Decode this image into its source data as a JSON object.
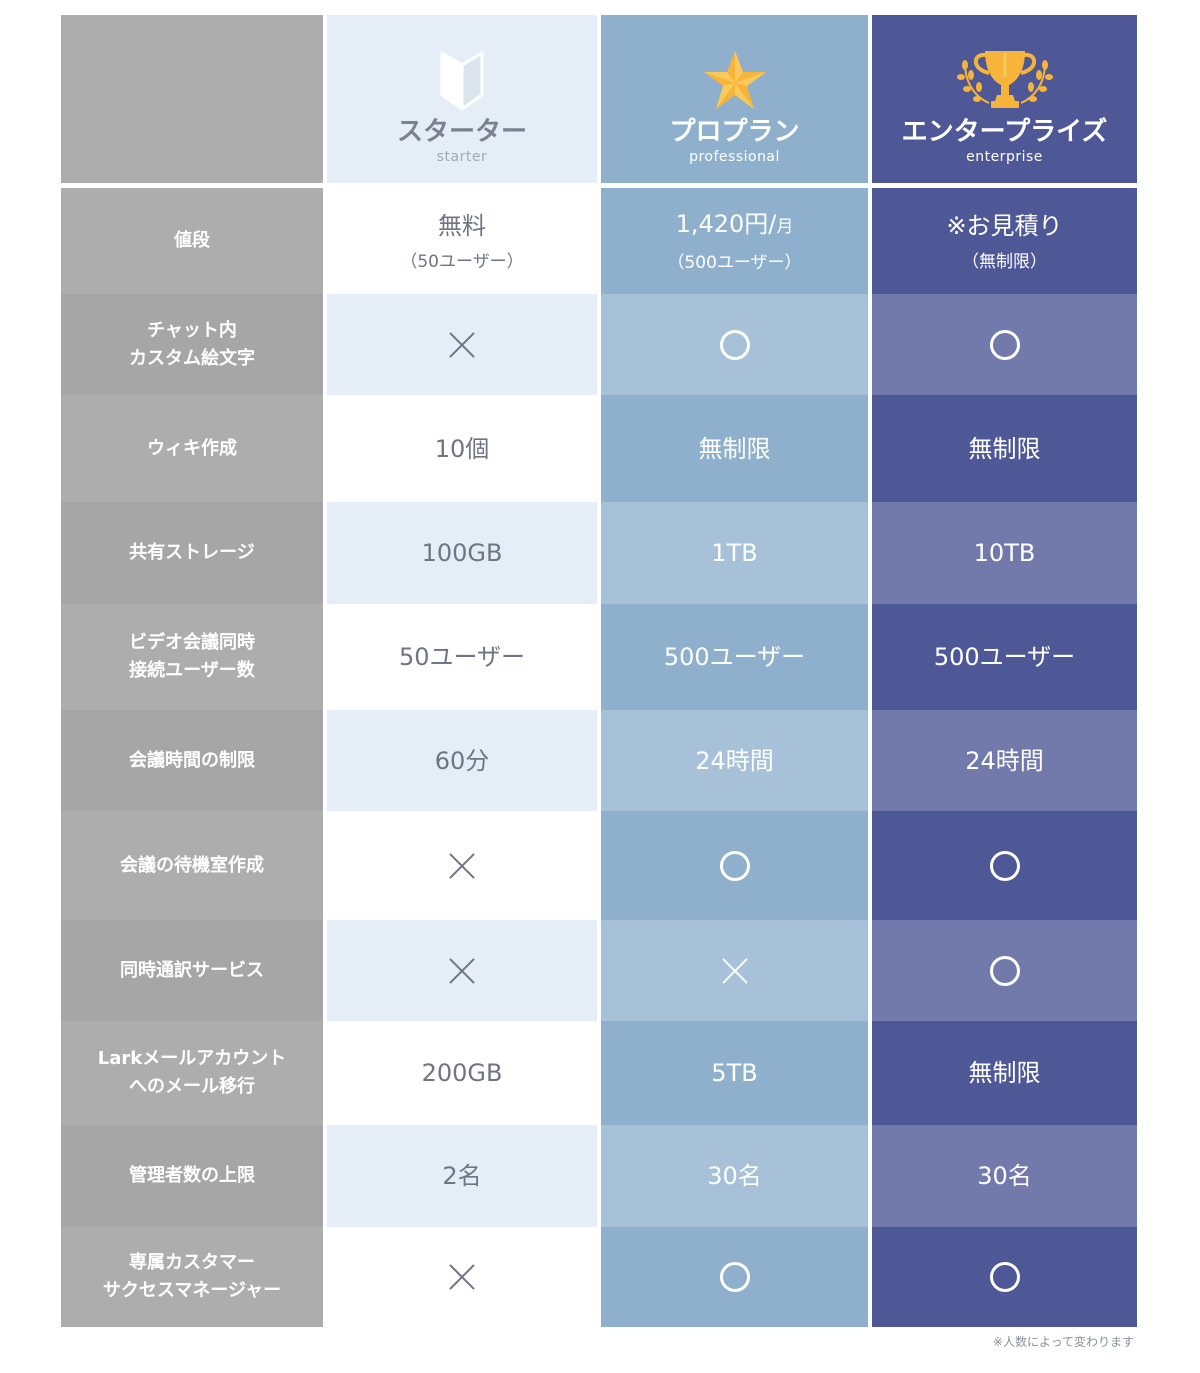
{
  "colors": {
    "label_col": [
      "#adadad",
      "#a6a6a6"
    ],
    "starter": [
      "#ffffff",
      "#e5eef6"
    ],
    "professional": [
      "#8fb0cd",
      "#a6c1d8"
    ],
    "enterprise": [
      "#4f5896",
      "#727aab"
    ],
    "starter_text": "#6f7585",
    "accent_gold": "#f6b53a"
  },
  "plans": [
    {
      "key": "starter",
      "name_jp": "スターター",
      "name_en": "starter",
      "icon": "beginner-mark-icon"
    },
    {
      "key": "professional",
      "name_jp": "プロプラン",
      "name_en": "professional",
      "icon": "star-icon"
    },
    {
      "key": "enterprise",
      "name_jp": "エンタープライズ",
      "name_en": "enterprise",
      "icon": "trophy-icon"
    }
  ],
  "rows": [
    {
      "label": [
        "値段"
      ],
      "cells": [
        {
          "type": "text",
          "main": "無料",
          "sub": "（50ユーザー）"
        },
        {
          "type": "text",
          "main": "1,420円/",
          "unit": "月",
          "sub": "（500ユーザー）"
        },
        {
          "type": "text",
          "main": "※お見積り",
          "sub": "（無制限）"
        }
      ]
    },
    {
      "label": [
        "チャット内",
        "カスタム絵文字"
      ],
      "cells": [
        {
          "type": "x"
        },
        {
          "type": "o"
        },
        {
          "type": "o"
        }
      ]
    },
    {
      "label": [
        "ウィキ作成"
      ],
      "cells": [
        {
          "type": "text",
          "main": "10個"
        },
        {
          "type": "text",
          "main": "無制限"
        },
        {
          "type": "text",
          "main": "無制限"
        }
      ]
    },
    {
      "label": [
        "共有ストレージ"
      ],
      "cells": [
        {
          "type": "text",
          "main": "100GB"
        },
        {
          "type": "text",
          "main": "1TB"
        },
        {
          "type": "text",
          "main": "10TB"
        }
      ]
    },
    {
      "label": [
        "ビデオ会議同時",
        "接続ユーザー数"
      ],
      "cells": [
        {
          "type": "text",
          "main": "50ユーザー"
        },
        {
          "type": "text",
          "main": "500ユーザー"
        },
        {
          "type": "text",
          "main": "500ユーザー"
        }
      ]
    },
    {
      "label": [
        "会議時間の制限"
      ],
      "cells": [
        {
          "type": "text",
          "main": "60分"
        },
        {
          "type": "text",
          "main": "24時間"
        },
        {
          "type": "text",
          "main": "24時間"
        }
      ]
    },
    {
      "label": [
        "会議の待機室作成"
      ],
      "cells": [
        {
          "type": "x"
        },
        {
          "type": "o"
        },
        {
          "type": "o"
        }
      ]
    },
    {
      "label": [
        "同時通訳サービス"
      ],
      "cells": [
        {
          "type": "x"
        },
        {
          "type": "x"
        },
        {
          "type": "o"
        }
      ]
    },
    {
      "label": [
        "Larkメールアカウント",
        "へのメール移行"
      ],
      "cells": [
        {
          "type": "text",
          "main": "200GB"
        },
        {
          "type": "text",
          "main": "5TB"
        },
        {
          "type": "text",
          "main": "無制限"
        }
      ]
    },
    {
      "label": [
        "管理者数の上限"
      ],
      "cells": [
        {
          "type": "text",
          "main": "2名"
        },
        {
          "type": "text",
          "main": "30名"
        },
        {
          "type": "text",
          "main": "30名"
        }
      ]
    },
    {
      "label": [
        "専属カスタマー",
        "サクセスマネージャー"
      ],
      "cells": [
        {
          "type": "x"
        },
        {
          "type": "o"
        },
        {
          "type": "o"
        }
      ]
    }
  ],
  "row_bounds": [
    173,
    279,
    380,
    487,
    589,
    695,
    796,
    905,
    1006,
    1110,
    1212,
    1312
  ],
  "footnote": "※人数によって変わります"
}
